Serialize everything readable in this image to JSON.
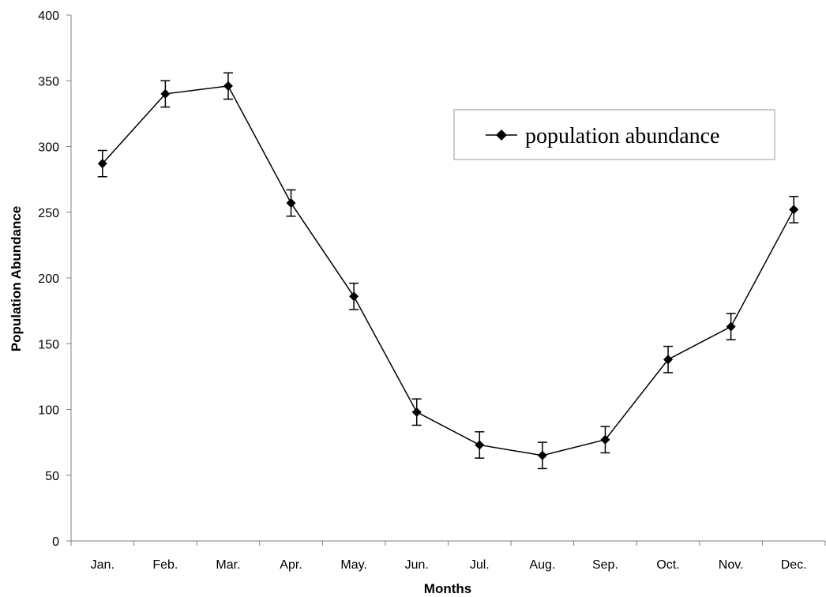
{
  "chart_data": {
    "type": "line",
    "title": "",
    "xlabel": "Months",
    "ylabel": "Population Abundance",
    "categories": [
      "Jan.",
      "Feb.",
      "Mar.",
      "Apr.",
      "May.",
      "Jun.",
      "Jul.",
      "Aug.",
      "Sep.",
      "Oct.",
      "Nov.",
      "Dec."
    ],
    "series": [
      {
        "name": "population abundance",
        "values": [
          287,
          340,
          346,
          257,
          186,
          98,
          73,
          65,
          77,
          138,
          163,
          252
        ],
        "error": 10,
        "color": "#000000",
        "marker": "diamond"
      }
    ],
    "ylim": [
      0,
      400
    ],
    "yticks": [
      0,
      50,
      100,
      150,
      200,
      250,
      300,
      350,
      400
    ],
    "grid": false,
    "legend_position": "top-right"
  }
}
